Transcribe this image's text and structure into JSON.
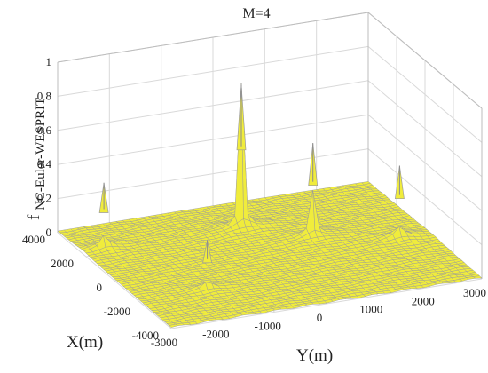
{
  "chart_data": {
    "type": "surface3d",
    "title": "M=4",
    "xlabel": "Y(m)",
    "ylabel": "X(m)",
    "zlabel": "f",
    "zlabel_subscript": "NC-Euler-WESPRIT",
    "y_ticks": [
      "-3000",
      "-2000",
      "-1000",
      "0",
      "1000",
      "2000",
      "3000"
    ],
    "x_ticks": [
      "4000",
      "2000",
      "0",
      "-2000",
      "-4000"
    ],
    "z_ticks": [
      "0",
      "0.2",
      "0.4",
      "0.6",
      "0.8",
      "1"
    ],
    "y_range": [
      -3000,
      3000
    ],
    "x_range": [
      -4000,
      4000
    ],
    "z_range": [
      0,
      1
    ],
    "grid": true,
    "surface_color": "#f0ec3c",
    "edge_color": "#9a9a9a",
    "peaks": [
      {
        "y": -2600,
        "x": 2200,
        "z": 0.4
      },
      {
        "y": -1700,
        "x": -1800,
        "z": 0.3
      },
      {
        "y": 0,
        "x": 2000,
        "z": 0.86
      },
      {
        "y": 1000,
        "x": 600,
        "z": 0.57
      },
      {
        "y": 2400,
        "x": -400,
        "z": 0.44
      }
    ]
  }
}
